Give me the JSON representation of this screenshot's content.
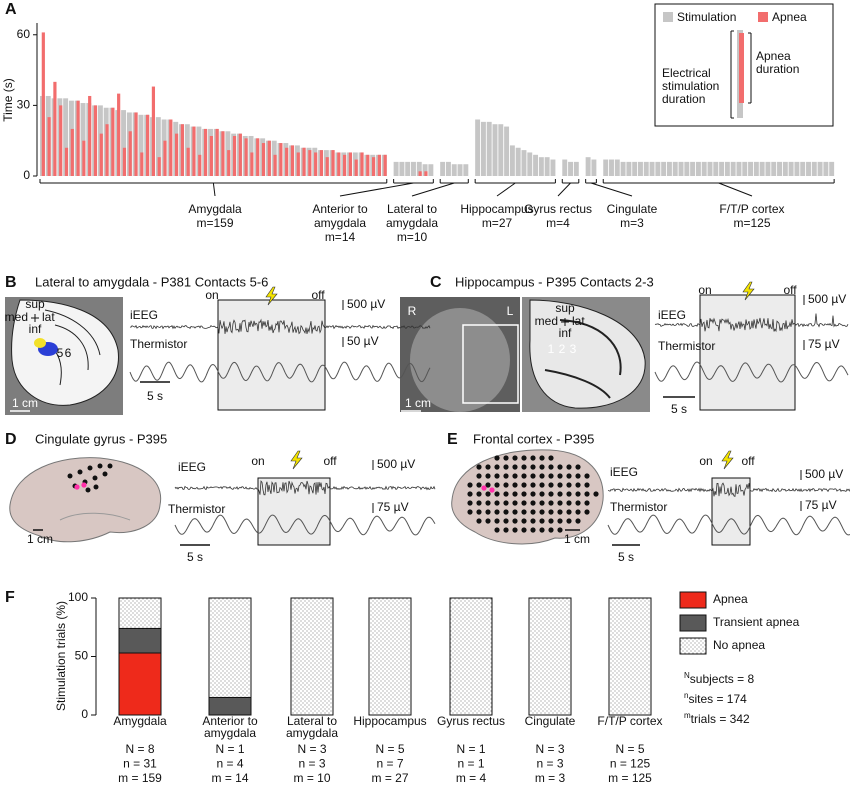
{
  "chart_data": [
    {
      "type": "bar",
      "panel": "A",
      "ylabel": "Time (s)",
      "ylim": [
        0,
        65
      ],
      "yticks": [
        0,
        30,
        60
      ],
      "series": [
        {
          "name": "Stimulation",
          "color": "#c6c6c6"
        },
        {
          "name": "Apnea",
          "color": "#f26d6d"
        }
      ],
      "legend": "upper right",
      "annotations": {
        "stimulation_duration": [
          "Electrical",
          "stimulation",
          "duration"
        ],
        "apnea_duration": [
          "Apnea",
          "duration"
        ]
      },
      "groups": [
        {
          "name": [
            "Amygdala"
          ],
          "note": "m=159",
          "stimulation": [
            34,
            34,
            33,
            33,
            33,
            32,
            32,
            31,
            31,
            30,
            30,
            29,
            29,
            28,
            28,
            27,
            27,
            26,
            26,
            25,
            25,
            24,
            24,
            23,
            22,
            22,
            21,
            21,
            20,
            20,
            20,
            19,
            19,
            18,
            18,
            17,
            17,
            16,
            16,
            15,
            15,
            14,
            14,
            13,
            13,
            12,
            12,
            12,
            11,
            11,
            11,
            10,
            10,
            10,
            10,
            10,
            9,
            9,
            9,
            9
          ],
          "apnea": [
            61,
            25,
            40,
            30,
            12,
            20,
            32,
            15,
            34,
            30,
            18,
            22,
            29,
            35,
            12,
            19,
            27,
            10,
            26,
            38,
            8,
            15,
            24,
            18,
            22,
            12,
            21,
            9,
            20,
            17,
            20,
            19,
            11,
            17,
            18,
            16,
            10,
            16,
            14,
            15,
            9,
            14,
            12,
            13,
            10,
            12,
            11,
            10,
            11,
            8,
            11,
            10,
            9,
            10,
            7,
            10,
            9,
            8,
            9,
            9
          ]
        },
        {
          "name": [
            "Anterior to",
            "amygdala"
          ],
          "note": "m=14",
          "stimulation": [
            6,
            6,
            6,
            6,
            6,
            5,
            5
          ],
          "apnea": [
            null,
            null,
            null,
            null,
            2,
            2,
            null
          ]
        },
        {
          "name": [
            "Lateral to",
            "amygdala"
          ],
          "note": "m=10",
          "stimulation": [
            6,
            6,
            5,
            5,
            5
          ]
        },
        {
          "name": [
            "Hippocampus"
          ],
          "note": "m=27",
          "stimulation": [
            24,
            23,
            23,
            22,
            22,
            21,
            13,
            12,
            11,
            10,
            9,
            8,
            8,
            7
          ]
        },
        {
          "name": [
            "Gyrus rectus"
          ],
          "note": "m=4",
          "stimulation": [
            7,
            6,
            6
          ]
        },
        {
          "name": [
            "Cingulate"
          ],
          "note": "m=3",
          "stimulation": [
            8,
            7
          ]
        },
        {
          "name": [
            "F/T/P cortex"
          ],
          "note": "m=125",
          "stimulation": [
            7,
            7,
            7,
            6,
            6,
            6,
            6,
            6,
            6,
            6,
            6,
            6,
            6,
            6,
            6,
            6,
            6,
            6,
            6,
            6,
            6,
            6,
            6,
            6,
            6,
            6,
            6,
            6,
            6,
            6,
            6,
            6,
            6,
            6,
            6,
            6,
            6,
            6,
            6,
            6
          ]
        }
      ]
    },
    {
      "type": "stacked_bar",
      "panel": "F",
      "ylabel": "Stimulation trials (%)",
      "ylim": [
        0,
        100
      ],
      "yticks": [
        0,
        50,
        100
      ],
      "categories": [
        [
          "Amygdala"
        ],
        [
          "Anterior to",
          "amygdala"
        ],
        [
          "Lateral to",
          "amygdala"
        ],
        [
          "Hippocampus"
        ],
        [
          "Gyrus rectus"
        ],
        [
          "Cingulate"
        ],
        [
          "F/T/P cortex"
        ]
      ],
      "series": [
        {
          "name": "Apnea",
          "color": "#ee2a1b",
          "values": [
            53,
            0,
            0,
            0,
            0,
            0,
            0
          ]
        },
        {
          "name": "Transient apnea",
          "color": "#595959",
          "values": [
            21,
            15,
            0,
            0,
            0,
            0,
            0
          ]
        },
        {
          "name": "No apnea",
          "color": "#ffffff",
          "pattern": "dots",
          "values": [
            26,
            85,
            100,
            100,
            100,
            100,
            100
          ]
        }
      ],
      "counts": [
        [
          "N = 8",
          "n = 31",
          "m = 159"
        ],
        [
          "N = 1",
          "n = 4",
          "m = 14"
        ],
        [
          "N = 3",
          "n = 3",
          "m = 10"
        ],
        [
          "N = 5",
          "n = 7",
          "m = 27"
        ],
        [
          "N = 1",
          "n = 1",
          "m = 4"
        ],
        [
          "N = 3",
          "n = 3",
          "m = 3"
        ],
        [
          "N = 5",
          "n = 125",
          "m = 125"
        ]
      ],
      "notes": [
        {
          "sup": "N",
          "text": "subjects = 8"
        },
        {
          "sup": "n",
          "text": "sites = 174"
        },
        {
          "sup": "m",
          "text": "trials = 342"
        }
      ]
    }
  ],
  "panels": [
    {
      "letter": "B",
      "title": "Lateral to amygdala - P381 Contacts 5-6",
      "orientation": [
        "sup",
        "med",
        "lat",
        "inf"
      ],
      "contacts": [
        "5",
        "6"
      ],
      "scale_bar": "1 cm",
      "traces": [
        "iEEG",
        "Thermistor"
      ],
      "stimulation": [
        "on",
        "off"
      ],
      "amplitude": [
        "500 µV",
        "50 µV"
      ],
      "time_bar": "5 s"
    },
    {
      "letter": "C",
      "title": "Hippocampus - P395 Contacts 2-3",
      "sides": [
        "R",
        "L"
      ],
      "orientation": [
        "sup",
        "med",
        "lat",
        "inf"
      ],
      "contacts": [
        "1",
        "2",
        "3"
      ],
      "scale_bar": "1 cm",
      "traces": [
        "iEEG",
        "Thermistor"
      ],
      "stimulation": [
        "on",
        "off"
      ],
      "amplitude": [
        "500 µV",
        "75 µV"
      ],
      "time_bar": "5 s"
    },
    {
      "letter": "D",
      "title": "Cingulate gyrus - P395",
      "scale_bar": "1 cm",
      "traces": [
        "iEEG",
        "Thermistor"
      ],
      "stimulation": [
        "on",
        "off"
      ],
      "amplitude": [
        "500 µV",
        "75 µV"
      ],
      "time_bar": "5 s"
    },
    {
      "letter": "E",
      "title": "Frontal cortex - P395",
      "scale_bar": "1 cm",
      "traces": [
        "iEEG",
        "Thermistor"
      ],
      "stimulation": [
        "on",
        "off"
      ],
      "amplitude": [
        "500 µV",
        "75 µV"
      ],
      "time_bar": "5 s"
    }
  ]
}
